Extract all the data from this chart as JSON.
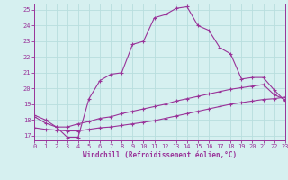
{
  "xlabel": "Windchill (Refroidissement éolien,°C)",
  "background_color": "#d6f0f0",
  "grid_color": "#b8dede",
  "line_color": "#993399",
  "xlim": [
    0,
    23
  ],
  "ylim": [
    16.7,
    25.4
  ],
  "xticks": [
    0,
    1,
    2,
    3,
    4,
    5,
    6,
    7,
    8,
    9,
    10,
    11,
    12,
    13,
    14,
    15,
    16,
    17,
    18,
    19,
    20,
    21,
    22,
    23
  ],
  "yticks": [
    17,
    18,
    19,
    20,
    21,
    22,
    23,
    24,
    25
  ],
  "series1_x": [
    0,
    1,
    2,
    3,
    4,
    5,
    6,
    7,
    8,
    9,
    10,
    11,
    12,
    13,
    14,
    15,
    16,
    17,
    18,
    19,
    20,
    21,
    22,
    23
  ],
  "series1_y": [
    18.3,
    18.0,
    17.55,
    16.9,
    16.9,
    19.35,
    20.5,
    20.9,
    21.0,
    22.8,
    23.0,
    24.5,
    24.7,
    25.1,
    25.2,
    24.0,
    23.7,
    22.6,
    22.2,
    20.6,
    20.7,
    20.7,
    19.9,
    19.2
  ],
  "series2_x": [
    0,
    1,
    2,
    3,
    4,
    5,
    6,
    7,
    8,
    9,
    10,
    11,
    12,
    13,
    14,
    15,
    16,
    17,
    18,
    19,
    20,
    21,
    22,
    23
  ],
  "series2_y": [
    18.2,
    17.8,
    17.55,
    17.55,
    17.75,
    17.9,
    18.1,
    18.2,
    18.4,
    18.55,
    18.7,
    18.85,
    19.0,
    19.2,
    19.35,
    19.5,
    19.65,
    19.8,
    19.95,
    20.05,
    20.15,
    20.25,
    19.6,
    19.3
  ],
  "series3_x": [
    0,
    1,
    2,
    3,
    4,
    5,
    6,
    7,
    8,
    9,
    10,
    11,
    12,
    13,
    14,
    15,
    16,
    17,
    18,
    19,
    20,
    21,
    22,
    23
  ],
  "series3_y": [
    17.5,
    17.4,
    17.35,
    17.3,
    17.3,
    17.4,
    17.5,
    17.55,
    17.65,
    17.75,
    17.85,
    17.95,
    18.1,
    18.25,
    18.4,
    18.55,
    18.7,
    18.85,
    19.0,
    19.1,
    19.2,
    19.3,
    19.35,
    19.45
  ]
}
